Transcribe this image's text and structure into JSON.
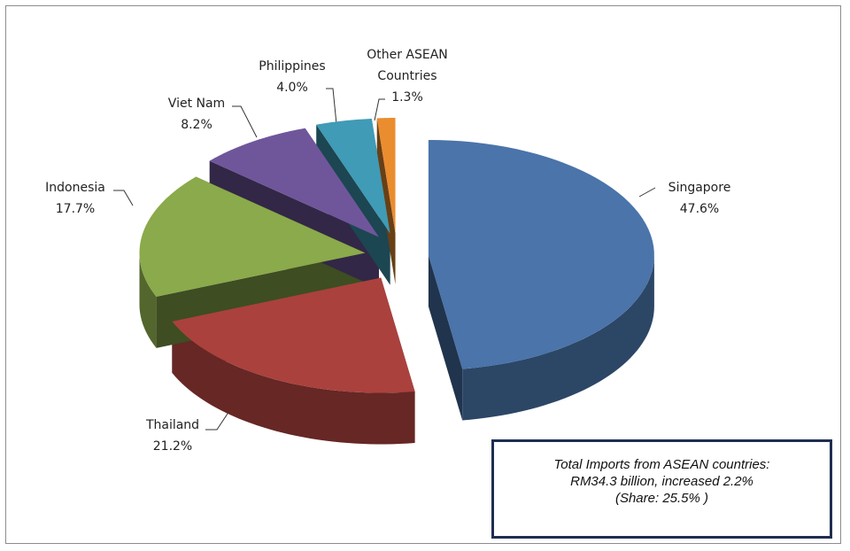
{
  "chart_data": {
    "type": "pie",
    "categories": [
      "Singapore",
      "Thailand",
      "Indonesia",
      "Viet Nam",
      "Philippines",
      "Other ASEAN Countries"
    ],
    "values": [
      47.6,
      21.2,
      17.7,
      8.2,
      4.0,
      1.3
    ],
    "value_labels": [
      "47.6%",
      "21.2%",
      "17.7%",
      "8.2%",
      "4.0%",
      "1.3%"
    ],
    "colors": [
      "#4a74aa",
      "#aa413d",
      "#8aaa4b",
      "#6f569b",
      "#3f9bb6",
      "#ea8d2f"
    ],
    "annotation": [
      "Total Imports from ASEAN countries:",
      "RM34.3  billion, increased 2.2%",
      "(Share:  25.5% )"
    ]
  }
}
